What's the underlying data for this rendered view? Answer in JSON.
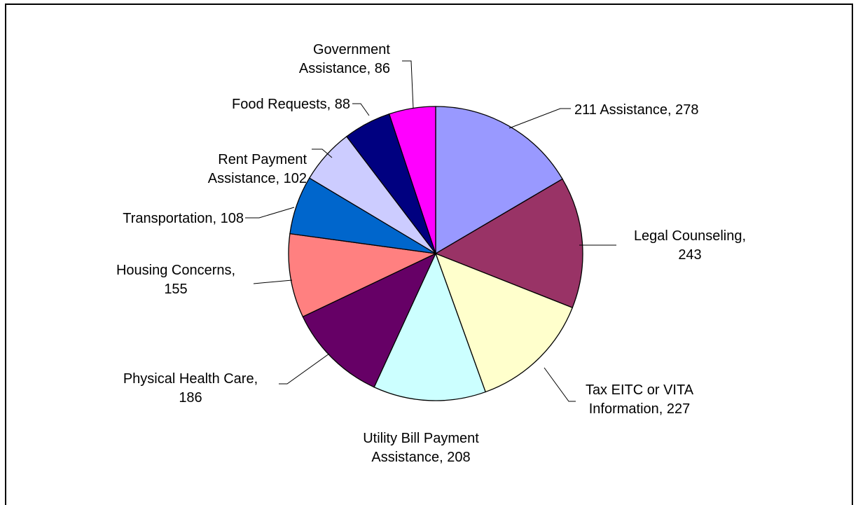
{
  "chart_data": {
    "type": "pie",
    "title": "",
    "slices": [
      {
        "label": "211 Assistance",
        "value": 278,
        "color": "#9999FF",
        "text": [
          "211 Assistance, 278"
        ]
      },
      {
        "label": "Legal Counseling",
        "value": 243,
        "color": "#993366",
        "text": [
          "Legal Counseling,",
          "243"
        ]
      },
      {
        "label": "Tax EITC or VITA Information",
        "value": 227,
        "color": "#FFFFCC",
        "text": [
          "Tax EITC or VITA",
          "Information, 227"
        ]
      },
      {
        "label": "Utility Bill Payment Assistance",
        "value": 208,
        "color": "#CCFFFF",
        "text": [
          "Utility Bill Payment",
          "Assistance, 208"
        ]
      },
      {
        "label": "Physical Health Care",
        "value": 186,
        "color": "#660066",
        "text": [
          "Physical Health Care,",
          "186"
        ]
      },
      {
        "label": "Housing Concerns",
        "value": 155,
        "color": "#FF8080",
        "text": [
          "Housing Concerns,",
          "155"
        ]
      },
      {
        "label": "Transportation",
        "value": 108,
        "color": "#0066CC",
        "text": [
          "Transportation, 108"
        ]
      },
      {
        "label": "Rent Payment Assistance",
        "value": 102,
        "color": "#CCCCFF",
        "text": [
          "Rent Payment",
          "Assistance, 102"
        ]
      },
      {
        "label": "Food Requests",
        "value": 88,
        "color": "#000080",
        "text": [
          "Food Requests, 88"
        ]
      },
      {
        "label": "Government Assistance",
        "value": 86,
        "color": "#FF00FF",
        "text": [
          "Government",
          "Assistance, 86"
        ]
      }
    ]
  }
}
